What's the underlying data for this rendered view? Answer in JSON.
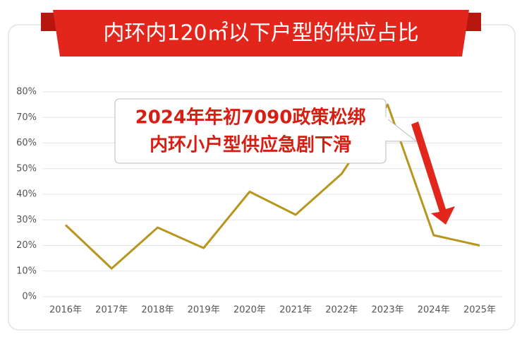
{
  "chart_data": {
    "type": "line",
    "title": "内环内120㎡以下户型的供应占比",
    "annotation": [
      "2024年年初7090政策松绑",
      "内环小户型供应急剧下滑"
    ],
    "categories": [
      "2016年",
      "2017年",
      "2018年",
      "2019年",
      "2020年",
      "2021年",
      "2022年",
      "2023年",
      "2024年",
      "2025年"
    ],
    "values": [
      28,
      11,
      27,
      19,
      41,
      32,
      48,
      75,
      24,
      20
    ],
    "color": "#b8961e",
    "ylim": [
      0,
      80
    ],
    "yticks": [
      {
        "value": 0,
        "label": "0%"
      },
      {
        "value": 10,
        "label": "10%"
      },
      {
        "value": 20,
        "label": "20%"
      },
      {
        "value": 30,
        "label": "30%"
      },
      {
        "value": 40,
        "label": "40%"
      },
      {
        "value": 50,
        "label": "50%"
      },
      {
        "value": 60,
        "label": "60%"
      },
      {
        "value": 70,
        "label": "70%"
      },
      {
        "value": 80,
        "label": "80%"
      }
    ],
    "grid": true
  }
}
